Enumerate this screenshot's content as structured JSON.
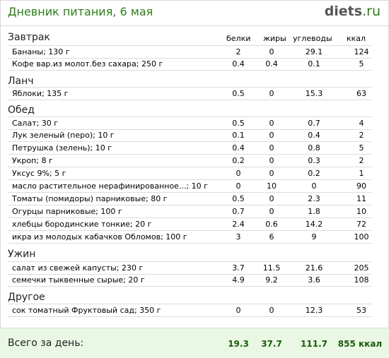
{
  "header": {
    "title": "Дневник питания, 6 мая",
    "logo_main": "diets",
    "logo_tld": ".ru"
  },
  "columns": {
    "protein": "белки",
    "fat": "жиры",
    "carbs": "углеводы",
    "kcal": "ккал"
  },
  "sections": {
    "breakfast": {
      "title": "Завтрак",
      "rows": [
        {
          "name": "Бананы; 130 г",
          "protein": "2",
          "fat": "0",
          "carbs": "29.1",
          "kcal": "124"
        },
        {
          "name": "Кофе вар.из молот.без сахара; 250 г",
          "protein": "0.4",
          "fat": "0.4",
          "carbs": "0.1",
          "kcal": "5"
        }
      ]
    },
    "lunch": {
      "title": "Ланч",
      "rows": [
        {
          "name": "Яблоки; 135 г",
          "protein": "0.5",
          "fat": "0",
          "carbs": "15.3",
          "kcal": "63"
        }
      ]
    },
    "dinner": {
      "title": "Обед",
      "rows": [
        {
          "name": "Салат; 30 г",
          "protein": "0.5",
          "fat": "0",
          "carbs": "0.7",
          "kcal": "4"
        },
        {
          "name": "Лук зеленый (перо); 10 г",
          "protein": "0.1",
          "fat": "0",
          "carbs": "0.4",
          "kcal": "2"
        },
        {
          "name": "Петрушка (зелень); 10 г",
          "protein": "0.4",
          "fat": "0",
          "carbs": "0.8",
          "kcal": "5"
        },
        {
          "name": "Укроп; 8 г",
          "protein": "0.2",
          "fat": "0",
          "carbs": "0.3",
          "kcal": "2"
        },
        {
          "name": "Уксус 9%; 5 г",
          "protein": "0",
          "fat": "0",
          "carbs": "0.2",
          "kcal": "1"
        },
        {
          "name": "масло растительное нерафинированное...; 10 г",
          "protein": "0",
          "fat": "10",
          "carbs": "0",
          "kcal": "90"
        },
        {
          "name": "Томаты (помидоры) парниковые; 80 г",
          "protein": "0.5",
          "fat": "0",
          "carbs": "2.3",
          "kcal": "11"
        },
        {
          "name": "Огурцы парниковые; 100 г",
          "protein": "0.7",
          "fat": "0",
          "carbs": "1.8",
          "kcal": "10"
        },
        {
          "name": "хлебцы бородинские тонкие; 20 г",
          "protein": "2.4",
          "fat": "0.6",
          "carbs": "14.2",
          "kcal": "72"
        },
        {
          "name": "икра из молодых кабачков Обломов; 100 г",
          "protein": "3",
          "fat": "6",
          "carbs": "9",
          "kcal": "100"
        }
      ]
    },
    "supper": {
      "title": "Ужин",
      "rows": [
        {
          "name": "салат из свежей капусты; 230 г",
          "protein": "3.7",
          "fat": "11.5",
          "carbs": "21.6",
          "kcal": "205"
        },
        {
          "name": "семечки тыквенные сырые; 20 г",
          "protein": "4.9",
          "fat": "9.2",
          "carbs": "3.6",
          "kcal": "108"
        }
      ]
    },
    "other": {
      "title": "Другое",
      "rows": [
        {
          "name": "сок томатный Фруктовый сад; 350 г",
          "protein": "0",
          "fat": "0",
          "carbs": "12.3",
          "kcal": "53"
        }
      ]
    }
  },
  "totals": {
    "label": "Всего за день:",
    "protein": "19.3",
    "fat": "37.7",
    "carbs": "111.7",
    "kcal": "855 ккал"
  }
}
